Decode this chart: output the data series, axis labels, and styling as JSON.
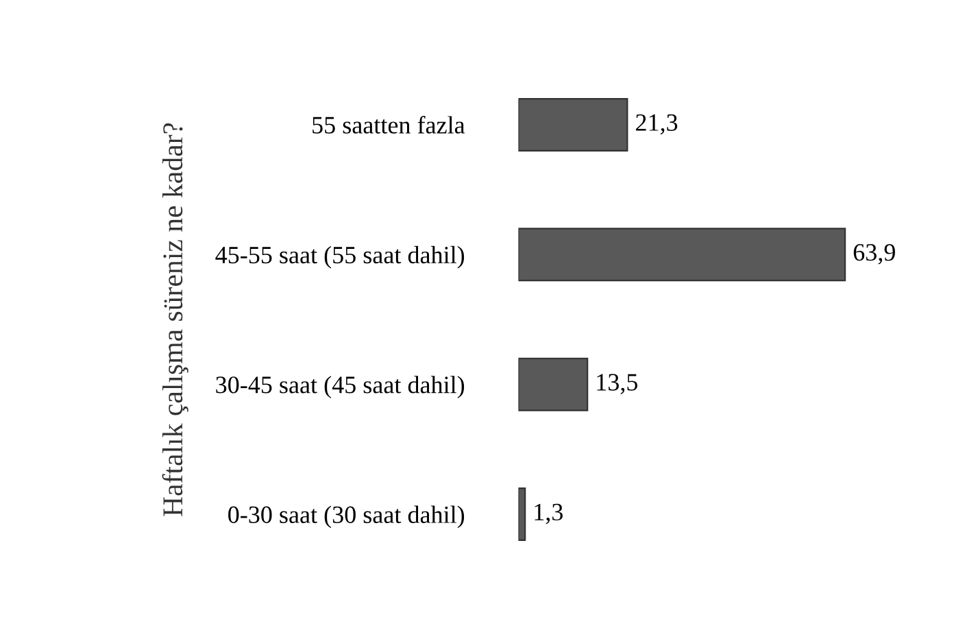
{
  "chart_data": {
    "type": "bar",
    "orientation": "horizontal",
    "ylabel": "Haftalık çalışma süreniz ne kadar?",
    "categories": [
      "55 saatten fazla",
      "45-55 saat (55 saat dahil)",
      "30-45 saat (45 saat dahil)",
      "0-30 saat (30 saat dahil)"
    ],
    "values": [
      21.3,
      63.9,
      13.5,
      1.3
    ],
    "value_labels": [
      "21,3",
      "63,9",
      "13,5",
      "1,3"
    ],
    "color": "#595959",
    "grid": false,
    "legend": false
  }
}
